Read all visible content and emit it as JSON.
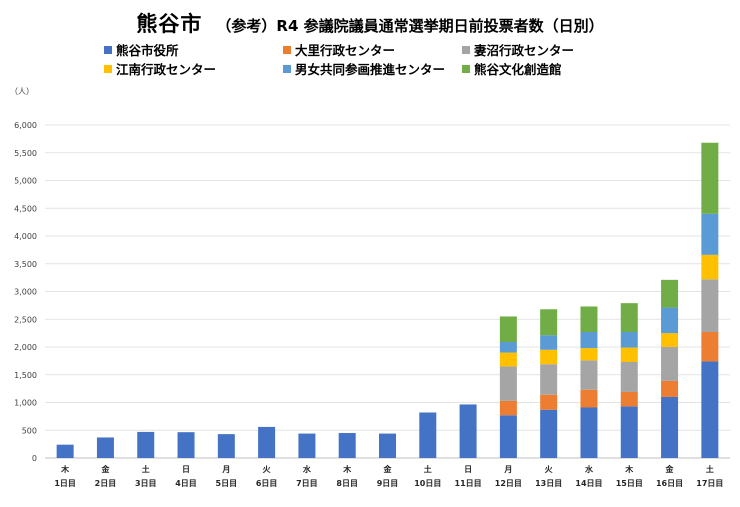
{
  "title": {
    "main": "熊谷市",
    "sub": "（参考）R4 参議院議員通常選挙期日前投票者数（日別）"
  },
  "unit_label": "（人）",
  "colors": {
    "kumagaya_shiyakusho": "#4472C4",
    "osato": "#ED7D31",
    "menuma": "#A5A5A5",
    "konan": "#FFC000",
    "danjo": "#5B9BD5",
    "bunka": "#70AD47"
  },
  "chart_data": {
    "type": "bar",
    "stacked": true,
    "title": "熊谷市 （参考）R4 参議院議員通常選挙期日前投票者数（日別）",
    "ylabel": "（人）",
    "ylim": [
      0,
      6000
    ],
    "yticks": [
      0,
      500,
      1000,
      1500,
      2000,
      2500,
      3000,
      3500,
      4000,
      4500,
      5000,
      5500,
      6000
    ],
    "ytick_labels": [
      "0",
      "500",
      "1,000",
      "1,500",
      "2,000",
      "2,500",
      "3,000",
      "3,500",
      "4,000",
      "4,500",
      "5,000",
      "5,500",
      "6,000"
    ],
    "grid": true,
    "legend_position": "top",
    "categories": [
      {
        "weekday": "木",
        "day": "1日目"
      },
      {
        "weekday": "金",
        "day": "2日目"
      },
      {
        "weekday": "土",
        "day": "3日目"
      },
      {
        "weekday": "日",
        "day": "4日目"
      },
      {
        "weekday": "月",
        "day": "5日目"
      },
      {
        "weekday": "火",
        "day": "6日目"
      },
      {
        "weekday": "水",
        "day": "7日目"
      },
      {
        "weekday": "木",
        "day": "8日目"
      },
      {
        "weekday": "金",
        "day": "9日目"
      },
      {
        "weekday": "土",
        "day": "10日目"
      },
      {
        "weekday": "日",
        "day": "11日目"
      },
      {
        "weekday": "月",
        "day": "12日目"
      },
      {
        "weekday": "火",
        "day": "13日目"
      },
      {
        "weekday": "水",
        "day": "14日目"
      },
      {
        "weekday": "木",
        "day": "15日目"
      },
      {
        "weekday": "金",
        "day": "16日目"
      },
      {
        "weekday": "土",
        "day": "17日目"
      }
    ],
    "series": [
      {
        "name": "熊谷市役所",
        "color": "#4472C4",
        "values": [
          240,
          370,
          470,
          465,
          430,
          560,
          440,
          450,
          440,
          820,
          965,
          770,
          870,
          910,
          930,
          1100,
          1740
        ]
      },
      {
        "name": "大里行政センター",
        "color": "#ED7D31",
        "values": [
          0,
          0,
          0,
          0,
          0,
          0,
          0,
          0,
          0,
          0,
          0,
          260,
          270,
          320,
          260,
          290,
          530
        ]
      },
      {
        "name": "妻沼行政センター",
        "color": "#A5A5A5",
        "values": [
          0,
          0,
          0,
          0,
          0,
          0,
          0,
          0,
          0,
          0,
          0,
          620,
          550,
          530,
          540,
          610,
          950
        ]
      },
      {
        "name": "江南行政センター",
        "color": "#FFC000",
        "values": [
          0,
          0,
          0,
          0,
          0,
          0,
          0,
          0,
          0,
          0,
          0,
          250,
          260,
          220,
          260,
          250,
          440
        ]
      },
      {
        "name": "男女共同参画推進センター",
        "color": "#5B9BD5",
        "values": [
          0,
          0,
          0,
          0,
          0,
          0,
          0,
          0,
          0,
          0,
          0,
          190,
          260,
          290,
          280,
          460,
          740
        ]
      },
      {
        "name": "熊谷文化創造館",
        "color": "#70AD47",
        "values": [
          0,
          0,
          0,
          0,
          0,
          0,
          0,
          0,
          0,
          0,
          0,
          460,
          470,
          460,
          520,
          500,
          1280
        ]
      }
    ]
  }
}
